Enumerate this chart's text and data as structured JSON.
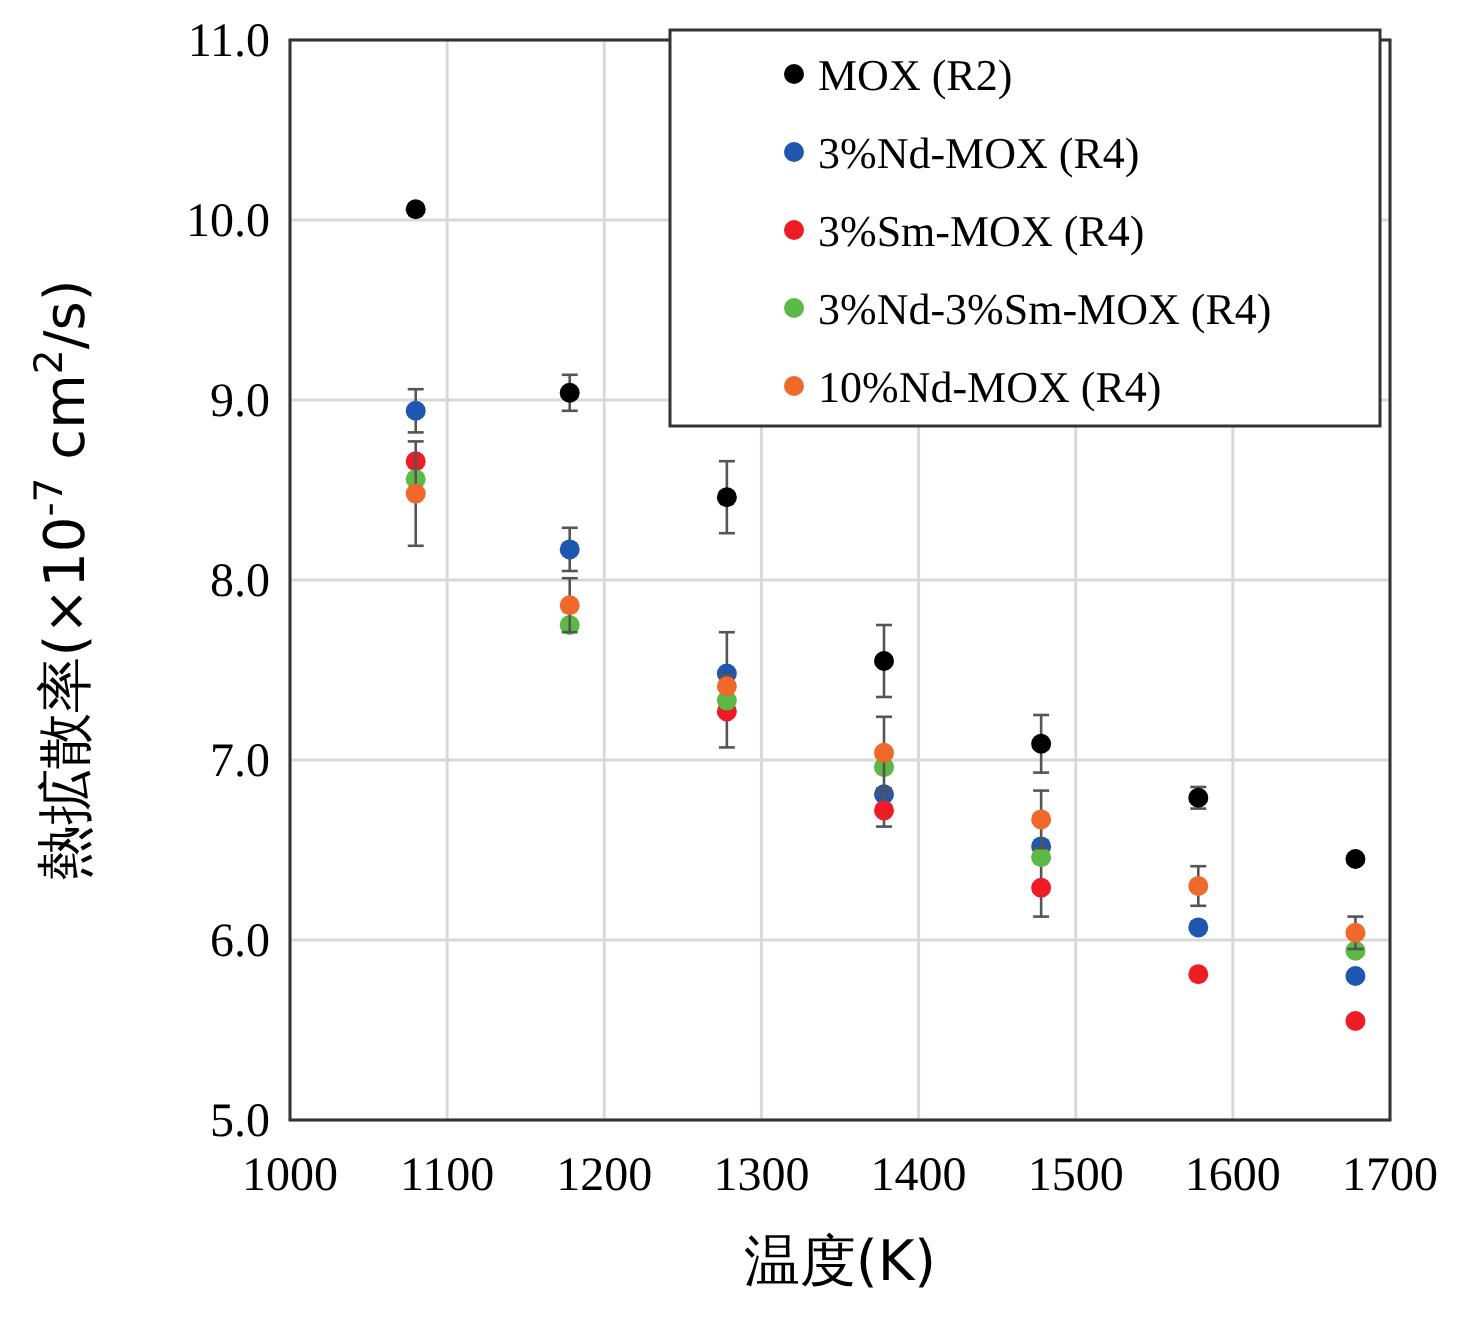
{
  "chart_data": {
    "type": "scatter",
    "xlabel": "温度(K)",
    "ylabel": "熱拡散率(×10$^{-7}$ cm$^{2}$/s)",
    "xlim": [
      1000,
      1700
    ],
    "xticks": [
      1000,
      1100,
      1200,
      1300,
      1400,
      1500,
      1600,
      1700
    ],
    "ylim": [
      5.0,
      11.0
    ],
    "yticks": [
      {
        "value": 5,
        "label": "5.0"
      },
      {
        "value": 6,
        "label": "6.0"
      },
      {
        "value": 7,
        "label": "7.0"
      },
      {
        "value": 8,
        "label": "8.0"
      },
      {
        "value": 9,
        "label": "9.0"
      },
      {
        "value": 10,
        "label": "10.0"
      },
      {
        "value": 11,
        "label": "11.0"
      }
    ],
    "x": [
      1080,
      1178,
      1278,
      1378,
      1478,
      1578,
      1678
    ],
    "grid": true,
    "legend": "top right",
    "marker": "circle",
    "series": [
      {
        "name": "MOX (R2)",
        "color": "#000000",
        "values": [
          10.06,
          9.04,
          8.46,
          7.55,
          7.09,
          6.79,
          6.45
        ],
        "errors": [
          null,
          0.1,
          0.2,
          0.2,
          0.16,
          0.06,
          null
        ]
      },
      {
        "name": "3%Nd-MOX (R4)",
        "color": "#1f56b0",
        "values": [
          8.94,
          8.17,
          7.48,
          6.81,
          6.52,
          6.07,
          5.8
        ],
        "errors": [
          0.12,
          0.12,
          0.23,
          null,
          null,
          null,
          null
        ]
      },
      {
        "name": "3%Sm-MOX (R4)",
        "color": "#ee1c25",
        "values": [
          8.66,
          null,
          7.27,
          6.72,
          6.29,
          5.81,
          5.55
        ],
        "errors": [
          null,
          null,
          0.2,
          0.09,
          0.16,
          null,
          null
        ]
      },
      {
        "name": "3%Nd-3%Sm-MOX (R4)",
        "color": "#5cb946",
        "values": [
          8.56,
          7.75,
          7.33,
          6.96,
          6.46,
          null,
          5.94
        ],
        "errors": [
          null,
          null,
          null,
          null,
          null,
          null,
          null
        ]
      },
      {
        "name": "10%Nd-MOX (R4)",
        "color": "#f0682a",
        "values": [
          8.48,
          7.86,
          7.41,
          7.04,
          6.67,
          6.3,
          6.04
        ],
        "errors": [
          0.29,
          0.15,
          null,
          0.2,
          0.16,
          0.11,
          0.09
        ]
      }
    ]
  }
}
